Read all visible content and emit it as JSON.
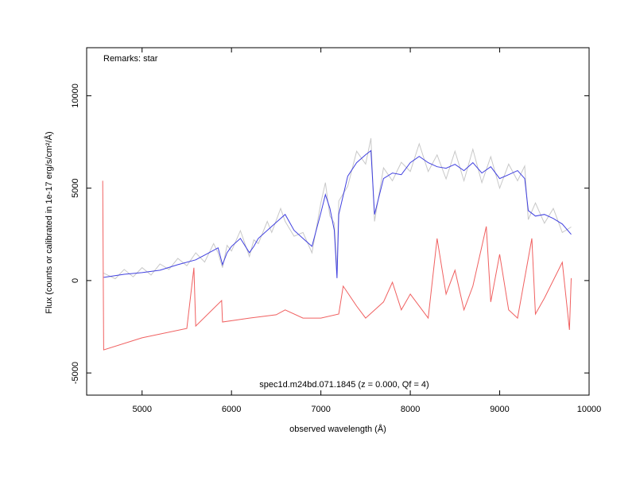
{
  "chart_data": {
    "type": "line",
    "annotations": [
      "Remarks: star",
      "spec1d.m24bd.071.1845 (z = 0.000, Qf = 4)"
    ],
    "xlabel": "observed wavelength (Å)",
    "ylabel": "Flux (counts or calibrated in 1e-17 erg/s/cm²/Å)",
    "xlim": [
      4380,
      10000
    ],
    "ylim": [
      -6200,
      12600
    ],
    "xticks": [
      5000,
      6000,
      7000,
      8000,
      9000,
      10000
    ],
    "yticks": [
      -5000,
      0,
      5000,
      10000
    ],
    "series": [
      {
        "color": "#c8c8c8",
        "x": [
          4570,
          4700,
          4800,
          4900,
          5000,
          5100,
          5200,
          5300,
          5400,
          5500,
          5600,
          5700,
          5800,
          5850,
          5900,
          5950,
          6000,
          6100,
          6200,
          6250,
          6300,
          6400,
          6450,
          6550,
          6600,
          6700,
          6800,
          6900,
          7000,
          7050,
          7100,
          7150,
          7180,
          7200,
          7300,
          7400,
          7500,
          7560,
          7600,
          7700,
          7800,
          7900,
          8000,
          8100,
          8200,
          8300,
          8400,
          8500,
          8600,
          8700,
          8800,
          8900,
          9000,
          9100,
          9200,
          9280,
          9320,
          9400,
          9500,
          9600,
          9700,
          9800
        ],
        "values": [
          400,
          100,
          600,
          200,
          700,
          300,
          900,
          600,
          1200,
          800,
          1500,
          1000,
          2000,
          1500,
          700,
          1900,
          1600,
          2700,
          1300,
          2200,
          2000,
          3200,
          2600,
          3900,
          3200,
          2400,
          2600,
          1500,
          4200,
          5300,
          3500,
          3100,
          500,
          4300,
          5100,
          7000,
          6300,
          7700,
          3200,
          6100,
          5400,
          6400,
          5900,
          7400,
          5900,
          6800,
          5500,
          7000,
          5400,
          7100,
          5300,
          6700,
          5000,
          6300,
          5400,
          6200,
          3300,
          4200,
          3100,
          3900,
          2600,
          2900
        ]
      },
      {
        "color": "#4040e0",
        "x": [
          4570,
          4800,
          5000,
          5200,
          5400,
          5600,
          5800,
          5850,
          5900,
          5950,
          6000,
          6100,
          6200,
          6250,
          6300,
          6450,
          6550,
          6600,
          6700,
          6800,
          6900,
          7000,
          7050,
          7100,
          7150,
          7180,
          7200,
          7300,
          7400,
          7500,
          7560,
          7600,
          7700,
          7800,
          7900,
          8000,
          8100,
          8200,
          8300,
          8400,
          8500,
          8600,
          8700,
          8800,
          8900,
          9000,
          9100,
          9200,
          9280,
          9320,
          9400,
          9500,
          9600,
          9700,
          9800
        ],
        "values": [
          170,
          340,
          430,
          560,
          860,
          1120,
          1640,
          1770,
          860,
          1510,
          1850,
          2280,
          1510,
          1850,
          2280,
          2930,
          3360,
          3580,
          2720,
          2280,
          1850,
          3660,
          4650,
          3920,
          2720,
          130,
          3580,
          5650,
          6380,
          6810,
          7030,
          3580,
          5520,
          5820,
          5730,
          6380,
          6720,
          6380,
          6160,
          6080,
          6290,
          5950,
          6380,
          5820,
          6160,
          5520,
          5730,
          5950,
          5520,
          3790,
          3490,
          3580,
          3360,
          3060,
          2500
        ]
      },
      {
        "color": "#f06060",
        "x": [
          4560,
          4570,
          5000,
          5500,
          5580,
          5600,
          5890,
          5900,
          6200,
          6500,
          6600,
          6800,
          7000,
          7200,
          7250,
          7400,
          7500,
          7700,
          7800,
          7900,
          8000,
          8200,
          8300,
          8400,
          8500,
          8600,
          8700,
          8800,
          8850,
          8900,
          9000,
          9100,
          9200,
          9360,
          9400,
          9500,
          9700,
          9780,
          9800
        ],
        "values": [
          5400,
          -3750,
          -3100,
          -2590,
          690,
          -2460,
          -1080,
          -2240,
          -2030,
          -1850,
          -1590,
          -2030,
          -2030,
          -1810,
          -300,
          -1380,
          -2030,
          -1160,
          -90,
          -1590,
          -730,
          -2030,
          2280,
          -730,
          560,
          -1590,
          -300,
          1850,
          2930,
          -1160,
          1420,
          -1590,
          -2030,
          2280,
          -1810,
          -950,
          990,
          -2670,
          130
        ]
      }
    ]
  }
}
